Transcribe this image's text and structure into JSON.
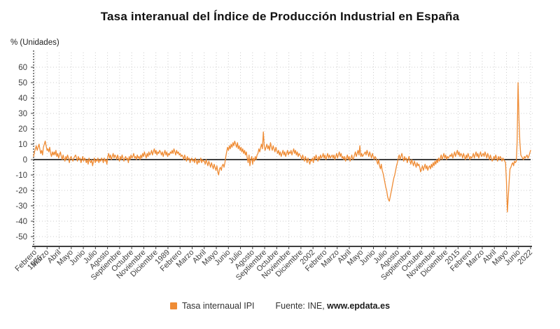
{
  "title": "Tasa interanual del Índice de Producción Industrial en España",
  "legend": {
    "series_label": "Tasa internaual IPI"
  },
  "footer": {
    "source_prefix": "Fuente: INE, ",
    "source_site": "www.epdata.es"
  },
  "chart_data": {
    "type": "line",
    "title": "Tasa interanual del Índice de Producción Industrial en España",
    "ylabel": "% (Unidades)",
    "series_name": "Tasa internaual IPI",
    "line_color": "#EF8C35",
    "grid": true,
    "legend_position": "bottom",
    "frequency": "monthly",
    "x_range": "Febrero 1976 - Junio 2022",
    "ylim": [
      -59,
      69
    ],
    "y_ticks": [
      60,
      50,
      40,
      30,
      20,
      10,
      0,
      -10,
      -20,
      -30,
      -40,
      -50
    ],
    "x_tick_labels": [
      "Febrero\n1976",
      "Marzo",
      "Abril",
      "Mayo",
      "Junio",
      "Julio",
      "Agosto",
      "Septiembre",
      "Octubre",
      "Noviembre",
      "Diciembre",
      "1989",
      "Febrero",
      "Marzo",
      "Abril",
      "Mayo",
      "Junio",
      "Julio",
      "Agosto",
      "Septiembre",
      "Octubre",
      "Noviembre",
      "Diciembre",
      "2002",
      "Febrero",
      "Marzo",
      "Abril",
      "Mayo",
      "Junio",
      "Julio",
      "Agosto",
      "Septiembre",
      "Octubre",
      "Noviembre",
      "Diciembre",
      "2015",
      "Febrero",
      "Marzo",
      "Abril",
      "Mayo",
      "Junio",
      "2022"
    ],
    "monthly_values_by_year": {
      "1976": [
        2,
        5,
        7,
        9,
        6,
        8,
        10,
        7,
        4,
        6,
        3
      ],
      "1977": [
        8,
        10,
        12,
        9,
        6,
        7,
        5,
        8,
        4,
        2,
        5,
        3
      ],
      "1978": [
        5,
        3,
        6,
        2,
        4,
        1,
        3,
        5,
        2,
        0,
        3,
        1
      ],
      "1979": [
        -1,
        2,
        0,
        3,
        1,
        -2,
        1,
        2,
        0,
        -1,
        1,
        2
      ],
      "1980": [
        3,
        1,
        -1,
        2,
        0,
        1,
        -2,
        0,
        2,
        -1,
        1,
        0
      ],
      "1981": [
        -2,
        0,
        -3,
        1,
        -1,
        -2,
        0,
        -4,
        -1,
        1,
        -2,
        0
      ],
      "1982": [
        -1,
        1,
        -2,
        0,
        -1,
        1,
        0,
        -2,
        1,
        -1,
        0,
        -3
      ],
      "1983": [
        2,
        4,
        1,
        3,
        0,
        2,
        4,
        1,
        3,
        2,
        0,
        3
      ],
      "1984": [
        1,
        -1,
        2,
        0,
        3,
        1,
        -1,
        1,
        2,
        0,
        1,
        -2
      ],
      "1985": [
        2,
        0,
        3,
        1,
        2,
        4,
        1,
        2,
        0,
        3,
        1,
        2
      ],
      "1986": [
        0,
        3,
        1,
        4,
        2,
        5,
        3,
        1,
        4,
        2,
        5,
        3
      ],
      "1987": [
        4,
        6,
        3,
        5,
        7,
        4,
        6,
        3,
        5,
        4,
        6,
        5
      ],
      "1988": [
        3,
        5,
        2,
        4,
        6,
        3,
        5,
        2,
        4,
        3,
        5,
        4
      ],
      "1989": [
        6,
        4,
        7,
        5,
        3,
        6,
        4,
        5,
        3,
        4,
        2,
        3
      ],
      "1990": [
        2,
        0,
        3,
        1,
        -1,
        2,
        0,
        1,
        -2,
        0,
        1,
        -1
      ],
      "1991": [
        0,
        -2,
        1,
        -1,
        -3,
        0,
        -2,
        -1,
        1,
        -2,
        0,
        -1
      ],
      "1992": [
        -1,
        -3,
        0,
        -2,
        -4,
        -1,
        -3,
        -5,
        -2,
        -4,
        -6,
        -3
      ],
      "1993": [
        -5,
        -7,
        -4,
        -8,
        -10,
        -6,
        -5,
        -7,
        -4,
        -3,
        -5,
        -2
      ],
      "1994": [
        2,
        5,
        8,
        6,
        9,
        7,
        10,
        8,
        11,
        9,
        12,
        10
      ],
      "1995": [
        8,
        11,
        7,
        9,
        6,
        8,
        5,
        7,
        4,
        6,
        3,
        5
      ],
      "1996": [
        1,
        -2,
        3,
        -4,
        0,
        2,
        -3,
        1,
        -1,
        2,
        0,
        3
      ],
      "1997": [
        4,
        7,
        5,
        8,
        10,
        7,
        18,
        9,
        6,
        8,
        10,
        7
      ],
      "1998": [
        9,
        6,
        11,
        8,
        6,
        9,
        7,
        5,
        8,
        6,
        4,
        6
      ],
      "1999": [
        3,
        5,
        2,
        4,
        6,
        3,
        5,
        2,
        4,
        6,
        3,
        5
      ],
      "2000": [
        4,
        6,
        3,
        5,
        7,
        4,
        6,
        3,
        5,
        2,
        4,
        3
      ],
      "2001": [
        2,
        0,
        3,
        1,
        -1,
        2,
        0,
        -2,
        1,
        -1,
        -3,
        0
      ],
      "2002": [
        -1,
        1,
        -2,
        2,
        0,
        3,
        1,
        -1,
        2,
        0,
        3,
        1
      ],
      "2003": [
        2,
        4,
        1,
        3,
        0,
        2,
        4,
        1,
        3,
        1,
        2,
        3
      ],
      "2004": [
        1,
        3,
        0,
        2,
        4,
        1,
        3,
        5,
        2,
        4,
        1,
        2
      ],
      "2005": [
        0,
        2,
        -1,
        1,
        3,
        0,
        2,
        -1,
        1,
        3,
        0,
        1
      ],
      "2006": [
        3,
        5,
        2,
        4,
        6,
        3,
        9,
        2,
        4,
        2,
        3,
        4
      ],
      "2007": [
        5,
        3,
        6,
        4,
        2,
        5,
        3,
        1,
        4,
        2,
        0,
        2
      ],
      "2008": [
        1,
        -1,
        -3,
        0,
        -4,
        -6,
        -3,
        -7,
        -9,
        -12,
        -15,
        -18
      ],
      "2009": [
        -20,
        -24,
        -26,
        -27,
        -24,
        -21,
        -18,
        -15,
        -12,
        -10,
        -7,
        -4
      ],
      "2010": [
        -2,
        1,
        3,
        0,
        2,
        4,
        1,
        -1,
        2,
        0,
        1,
        -2
      ],
      "2011": [
        0,
        2,
        -1,
        -3,
        0,
        -2,
        -4,
        -1,
        -3,
        -5,
        -2,
        -4
      ],
      "2012": [
        -3,
        -5,
        -8,
        -6,
        -4,
        -7,
        -5,
        -3,
        -6,
        -4,
        -7,
        -5
      ],
      "2013": [
        -4,
        -6,
        -3,
        -5,
        -2,
        -4,
        -1,
        -3,
        0,
        -2,
        1,
        -1
      ],
      "2014": [
        1,
        3,
        0,
        2,
        4,
        1,
        3,
        0,
        2,
        1,
        2,
        3
      ],
      "2015": [
        2,
        4,
        1,
        3,
        5,
        2,
        4,
        6,
        3,
        5,
        2,
        4
      ],
      "2016": [
        3,
        1,
        4,
        2,
        0,
        3,
        1,
        4,
        2,
        0,
        2,
        1
      ],
      "2017": [
        2,
        4,
        1,
        3,
        5,
        2,
        4,
        1,
        3,
        5,
        2,
        3
      ],
      "2018": [
        4,
        2,
        5,
        3,
        1,
        4,
        2,
        0,
        3,
        1,
        -1,
        0
      ],
      "2019": [
        2,
        0,
        3,
        1,
        -1,
        2,
        0,
        2,
        1,
        -1,
        1,
        0
      ],
      "2020": [
        -1,
        -2,
        -14,
        -34,
        -24,
        -14,
        -6,
        -5,
        -3,
        -2,
        -4,
        -1
      ],
      "2021": [
        -2,
        -1,
        12,
        50,
        26,
        11,
        3,
        2,
        1,
        0,
        2,
        1
      ],
      "2022": [
        2,
        3,
        1,
        2,
        4,
        6
      ]
    }
  }
}
